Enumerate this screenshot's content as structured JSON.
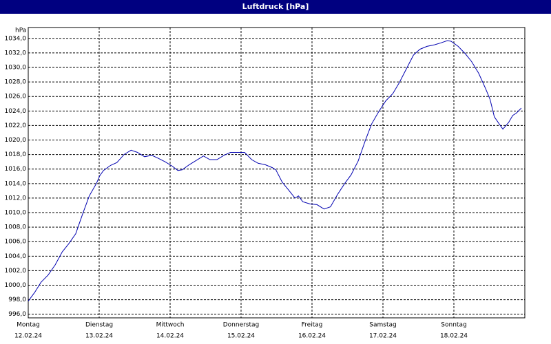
{
  "chart_data": {
    "type": "line",
    "title": "Luftdruck [hPa]",
    "y_unit": "hPa",
    "xlim": [
      0,
      7
    ],
    "ylim": [
      995.5,
      1035.5
    ],
    "grid": true,
    "color": "#0000b0",
    "xticks": [
      {
        "value": 0,
        "label": "Montag",
        "date": "12.02.24"
      },
      {
        "value": 1,
        "label": "Dienstag",
        "date": "13.02.24"
      },
      {
        "value": 2,
        "label": "Mittwoch",
        "date": "14.02.24"
      },
      {
        "value": 3,
        "label": "Donnerstag",
        "date": "15.02.24"
      },
      {
        "value": 4,
        "label": "Freitag",
        "date": "16.02.24"
      },
      {
        "value": 5,
        "label": "Samstag",
        "date": "17.02.24"
      },
      {
        "value": 6,
        "label": "Sonntag",
        "date": "18.02.24"
      }
    ],
    "yticks": [
      {
        "value": 996,
        "label": "996,0"
      },
      {
        "value": 998,
        "label": "998,0"
      },
      {
        "value": 1000,
        "label": "1000,0"
      },
      {
        "value": 1002,
        "label": "1002,0"
      },
      {
        "value": 1004,
        "label": "1004,0"
      },
      {
        "value": 1006,
        "label": "1006,0"
      },
      {
        "value": 1008,
        "label": "1008,0"
      },
      {
        "value": 1010,
        "label": "1010,0"
      },
      {
        "value": 1012,
        "label": "1012,0"
      },
      {
        "value": 1014,
        "label": "1014,0"
      },
      {
        "value": 1016,
        "label": "1016,0"
      },
      {
        "value": 1018,
        "label": "1018,0"
      },
      {
        "value": 1020,
        "label": "1020,0"
      },
      {
        "value": 1022,
        "label": "1022,0"
      },
      {
        "value": 1024,
        "label": "1024,0"
      },
      {
        "value": 1026,
        "label": "1026,0"
      },
      {
        "value": 1028,
        "label": "1028,0"
      },
      {
        "value": 1030,
        "label": "1030,0"
      },
      {
        "value": 1032,
        "label": "1032,0"
      },
      {
        "value": 1034,
        "label": "1034,0"
      }
    ],
    "x": [
      0,
      0.09,
      0.18,
      0.28,
      0.38,
      0.48,
      0.57,
      0.67,
      0.77,
      0.86,
      0.96,
      1.01,
      1.06,
      1.16,
      1.25,
      1.35,
      1.45,
      1.54,
      1.64,
      1.74,
      1.83,
      1.93,
      2.03,
      2.11,
      2.17,
      2.27,
      2.37,
      2.47,
      2.56,
      2.66,
      2.76,
      2.85,
      2.95,
      3.05,
      3.15,
      3.24,
      3.34,
      3.44,
      3.49,
      3.58,
      3.68,
      3.76,
      3.81,
      3.87,
      3.97,
      4.07,
      4.17,
      4.26,
      4.36,
      4.46,
      4.55,
      4.65,
      4.75,
      4.84,
      4.94,
      5.04,
      5.14,
      5.23,
      5.33,
      5.43,
      5.52,
      5.62,
      5.72,
      5.82,
      5.91,
      5.96,
      6.06,
      6.16,
      6.25,
      6.35,
      6.45,
      6.51,
      6.57,
      6.64,
      6.69,
      6.77,
      6.83,
      6.88,
      6.95
    ],
    "values": [
      997.8,
      999.0,
      1000.4,
      1001.4,
      1002.8,
      1004.6,
      1005.7,
      1007.1,
      1009.9,
      1012.3,
      1014.0,
      1015.1,
      1015.8,
      1016.5,
      1016.9,
      1018.0,
      1018.6,
      1018.3,
      1017.7,
      1017.9,
      1017.5,
      1017.0,
      1016.4,
      1015.8,
      1015.9,
      1016.6,
      1017.2,
      1017.8,
      1017.3,
      1017.3,
      1017.9,
      1018.3,
      1018.3,
      1018.3,
      1017.3,
      1016.8,
      1016.6,
      1016.2,
      1015.9,
      1014.2,
      1013.0,
      1012.0,
      1012.3,
      1011.5,
      1011.2,
      1011.1,
      1010.5,
      1010.8,
      1012.5,
      1014.0,
      1015.2,
      1017.1,
      1019.9,
      1022.2,
      1023.9,
      1025.4,
      1026.4,
      1027.9,
      1029.8,
      1031.7,
      1032.5,
      1032.9,
      1033.1,
      1033.4,
      1033.7,
      1033.6,
      1032.9,
      1031.9,
      1030.8,
      1029.2,
      1027.0,
      1025.6,
      1023.2,
      1022.2,
      1021.5,
      1022.4,
      1023.4,
      1023.7,
      1024.4
    ]
  }
}
